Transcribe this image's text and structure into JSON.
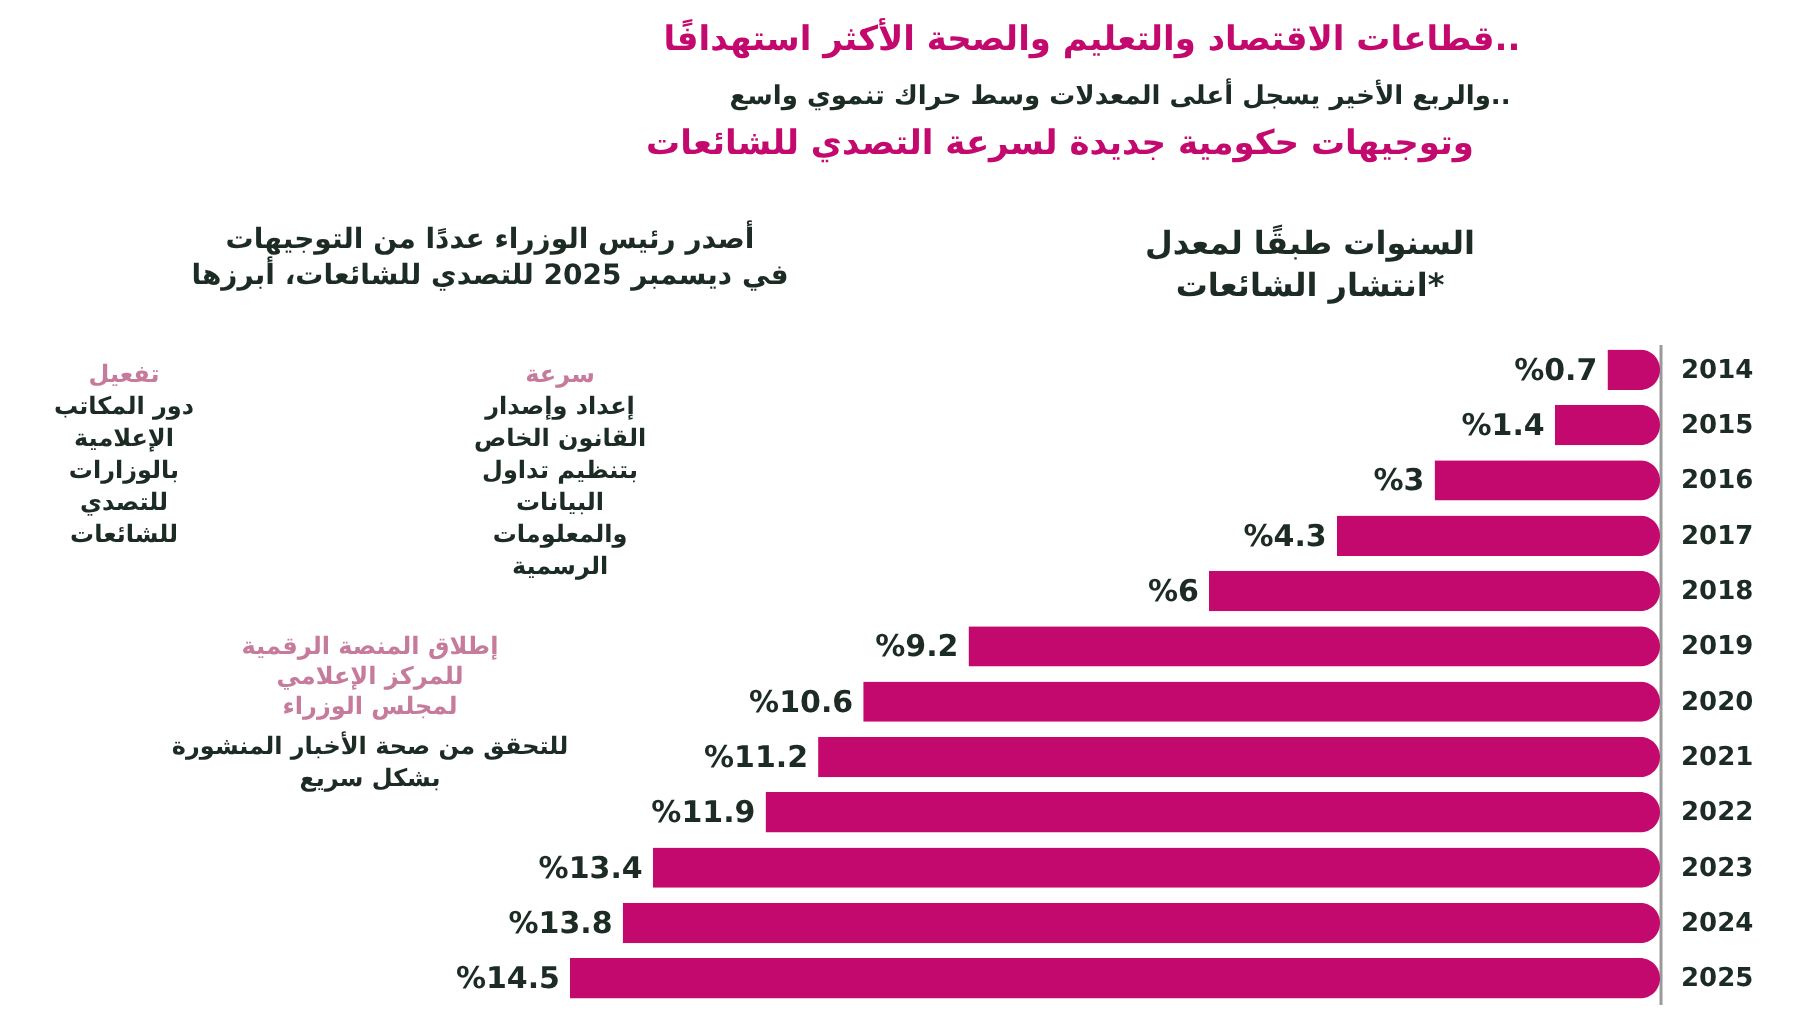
{
  "chart_data": {
    "type": "bar",
    "orientation": "horizontal",
    "title": "قطاعات الاقتصاد والتعليم والصحة الأكثر استهدافًا..",
    "subtitle": "والربع الأخير يسجل أعلى المعدلات وسط حراك تنموي واسع..",
    "categories": [
      "2014",
      "2015",
      "2016",
      "2017",
      "2018",
      "2019",
      "2020",
      "2021",
      "2022",
      "2023",
      "2024",
      "2025"
    ],
    "values": [
      0.7,
      1.4,
      3,
      4.3,
      6,
      9.2,
      10.6,
      11.2,
      11.9,
      13.4,
      13.8,
      14.5
    ],
    "value_labels": [
      "%0.7",
      "%1.4",
      "%3",
      "%4.3",
      "%6",
      "%9.2",
      "%10.6",
      "%11.2",
      "%11.9",
      "%13.4",
      "%13.8",
      "%14.5"
    ],
    "color": "#c4096e",
    "tick_labels": "y",
    "annotations": [
      "وتوجيهات حكومية جديدة لسرعة التصدي للشائعات",
      "السنوات طبقًا لمعدل انتشار الشائعات*",
      "أصدر رئيس الوزراء عددًا من التوجيهات في ديسمبر 2025 للتصدي للشائعات، أبرزها",
      "سرعة",
      "إعداد وإصدار القانون الخاص بتنظيم تداول البيانات والمعلومات الرسمية",
      "تفعيل",
      "دور المكاتب الإعلامية بالوزارات للتصدي للشائعات",
      "إطلاق المنصة الرقمية للمركز الإعلامي لمجلس الوزراء",
      "للتحقق من صحة الأخبار المنشورة بشكل سريع"
    ]
  }
}
